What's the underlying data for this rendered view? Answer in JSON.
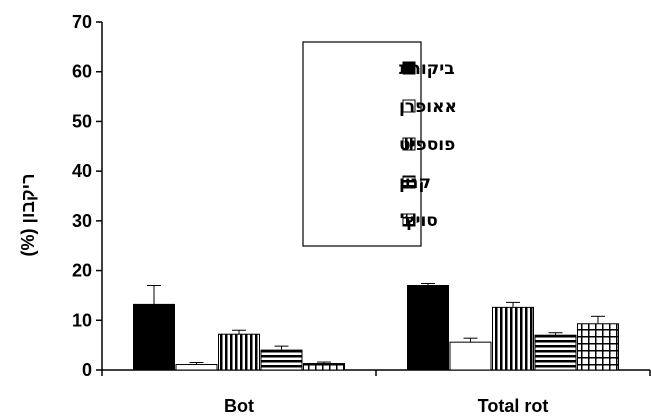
{
  "chart_data": {
    "type": "bar",
    "title": "",
    "xlabel": "",
    "ylabel": "ריקבון (%)",
    "ylim": [
      0,
      70
    ],
    "yticks": [
      0,
      10,
      20,
      30,
      40,
      50,
      60,
      70
    ],
    "grid": false,
    "legend_position": "top-center",
    "categories": [
      "Bot",
      "Total rot"
    ],
    "series": [
      {
        "name": "ביקורת",
        "pattern": "solid-black",
        "values": [
          13.2,
          17.0
        ],
        "errors": [
          3.8,
          0.4
        ]
      },
      {
        "name": "אאופרן",
        "pattern": "white",
        "values": [
          1.1,
          5.6
        ],
        "errors": [
          0.4,
          0.8
        ]
      },
      {
        "name": "פוספיט",
        "pattern": "vertical-stripes",
        "values": [
          7.2,
          12.6
        ],
        "errors": [
          0.8,
          1.0
        ]
      },
      {
        "name": "קנון",
        "pattern": "horizontal-stripes",
        "values": [
          4.0,
          7.0
        ],
        "errors": [
          0.8,
          0.5
        ]
      },
      {
        "name": "סויץ'",
        "pattern": "grid",
        "values": [
          1.3,
          9.3
        ],
        "errors": [
          0.3,
          1.5
        ]
      }
    ]
  }
}
